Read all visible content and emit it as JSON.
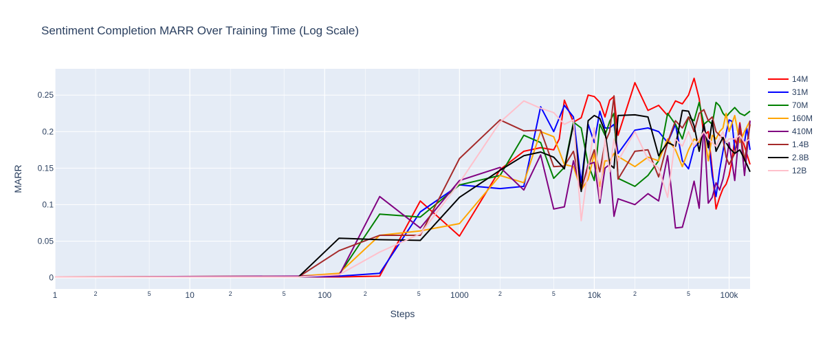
{
  "chart_data": {
    "type": "line",
    "title": "Sentiment Completion MARR Over Training Time (Log Scale)",
    "xlabel": "Steps",
    "ylabel": "MARR",
    "x_scale": "log",
    "xlim": [
      1,
      143000
    ],
    "ylim": [
      -0.0155,
      0.286
    ],
    "x_major_ticks": [
      1,
      10,
      100,
      1000,
      10000,
      100000
    ],
    "x_major_tick_labels": [
      "1",
      "10",
      "100",
      "1000",
      "10k",
      "100k"
    ],
    "x_minor_ticks": [
      2,
      5,
      20,
      50,
      200,
      500,
      2000,
      5000,
      20000,
      50000
    ],
    "x_minor_tick_labels": [
      "2",
      "5",
      "2",
      "5",
      "2",
      "5",
      "2",
      "5",
      "2",
      "5"
    ],
    "y_ticks": [
      0,
      0.05,
      0.1,
      0.15,
      0.2,
      0.25
    ],
    "y_tick_labels": [
      "0",
      "0.05",
      "0.1",
      "0.15",
      "0.2",
      "0.25"
    ],
    "grid": true,
    "legend_position": "right",
    "plot_background": "#e5ecf6",
    "series": [
      {
        "name": "14M",
        "color": "#ff0000",
        "x": [
          1,
          64,
          128,
          256,
          512,
          1000,
          2000,
          3000,
          4000,
          5000,
          5500,
          6000,
          7000,
          8000,
          9000,
          10000,
          11000,
          12000,
          13000,
          14000,
          15000,
          20000,
          25000,
          30000,
          35000,
          40000,
          45000,
          50000,
          55000,
          60000,
          65000,
          70000,
          75000,
          80000,
          85000,
          90000,
          95000,
          100000,
          105000,
          110000,
          115000,
          120000,
          125000,
          130000,
          135000,
          143000
        ],
        "y": [
          0.001,
          0.001,
          0.001,
          0.002,
          0.105,
          0.057,
          0.148,
          0.173,
          0.178,
          0.175,
          0.19,
          0.243,
          0.213,
          0.219,
          0.25,
          0.248,
          0.24,
          0.22,
          0.243,
          0.248,
          0.195,
          0.267,
          0.229,
          0.236,
          0.222,
          0.242,
          0.238,
          0.25,
          0.273,
          0.245,
          0.195,
          0.2,
          0.147,
          0.094,
          0.11,
          0.122,
          0.128,
          0.14,
          0.16,
          0.19,
          0.18,
          0.212,
          0.19,
          0.18,
          0.17,
          0.155
        ]
      },
      {
        "name": "31M",
        "color": "#0000ff",
        "x": [
          1,
          64,
          128,
          256,
          512,
          1000,
          2000,
          3000,
          4000,
          5000,
          6000,
          7000,
          8000,
          9000,
          10000,
          11000,
          12000,
          13000,
          14000,
          15000,
          20000,
          25000,
          30000,
          35000,
          40000,
          45000,
          50000,
          55000,
          60000,
          65000,
          70000,
          75000,
          80000,
          85000,
          90000,
          95000,
          100000,
          105000,
          110000,
          115000,
          120000,
          125000,
          130000,
          135000,
          143000
        ],
        "y": [
          0.001,
          0.001,
          0.002,
          0.006,
          0.09,
          0.127,
          0.122,
          0.125,
          0.234,
          0.2,
          0.236,
          0.22,
          0.13,
          0.21,
          0.185,
          0.228,
          0.205,
          0.205,
          0.21,
          0.17,
          0.202,
          0.205,
          0.2,
          0.185,
          0.21,
          0.16,
          0.149,
          0.178,
          0.185,
          0.2,
          0.19,
          0.14,
          0.111,
          0.147,
          0.173,
          0.198,
          0.216,
          0.214,
          0.175,
          0.18,
          0.2,
          0.19,
          0.185,
          0.205,
          0.175
        ]
      },
      {
        "name": "70M",
        "color": "#008000",
        "x": [
          1,
          64,
          128,
          256,
          512,
          1000,
          2000,
          3000,
          4000,
          5000,
          6000,
          7000,
          8000,
          9000,
          10000,
          11000,
          12000,
          13000,
          14000,
          15000,
          20000,
          25000,
          30000,
          35000,
          40000,
          45000,
          50000,
          55000,
          60000,
          65000,
          70000,
          75000,
          80000,
          85000,
          90000,
          95000,
          100000,
          110000,
          120000,
          130000,
          143000
        ],
        "y": [
          0.001,
          0.001,
          0.004,
          0.087,
          0.083,
          0.127,
          0.14,
          0.195,
          0.185,
          0.136,
          0.151,
          0.213,
          0.205,
          0.155,
          0.133,
          0.21,
          0.195,
          0.214,
          0.225,
          0.136,
          0.125,
          0.14,
          0.16,
          0.225,
          0.21,
          0.19,
          0.22,
          0.215,
          0.24,
          0.21,
          0.215,
          0.21,
          0.24,
          0.235,
          0.225,
          0.22,
          0.225,
          0.233,
          0.225,
          0.222,
          0.228
        ]
      },
      {
        "name": "160M",
        "color": "#ffa500",
        "x": [
          1,
          64,
          128,
          256,
          512,
          1000,
          2000,
          3000,
          4000,
          5000,
          6000,
          7000,
          8000,
          9000,
          10000,
          11000,
          12000,
          13000,
          14000,
          15000,
          20000,
          25000,
          30000,
          35000,
          40000,
          45000,
          50000,
          55000,
          60000,
          65000,
          70000,
          75000,
          80000,
          85000,
          90000,
          95000,
          100000,
          110000,
          120000,
          130000,
          143000
        ],
        "y": [
          0.001,
          0.002,
          0.006,
          0.058,
          0.064,
          0.074,
          0.14,
          0.13,
          0.2,
          0.193,
          0.155,
          0.152,
          0.12,
          0.135,
          0.17,
          0.125,
          0.16,
          0.16,
          0.17,
          0.166,
          0.152,
          0.165,
          0.16,
          0.19,
          0.175,
          0.152,
          0.175,
          0.19,
          0.185,
          0.2,
          0.16,
          0.195,
          0.19,
          0.2,
          0.205,
          0.225,
          0.2,
          0.222,
          0.185,
          0.2,
          0.215
        ]
      },
      {
        "name": "410M",
        "color": "#800080",
        "x": [
          1,
          64,
          128,
          256,
          512,
          1000,
          2000,
          3000,
          4000,
          5000,
          6000,
          7000,
          8000,
          9000,
          10000,
          11000,
          12000,
          13000,
          14000,
          15000,
          20000,
          25000,
          30000,
          35000,
          40000,
          45000,
          50000,
          55000,
          60000,
          65000,
          70000,
          75000,
          80000,
          85000,
          90000,
          95000,
          100000,
          110000,
          120000,
          130000,
          143000
        ],
        "y": [
          0.001,
          0.002,
          0.003,
          0.111,
          0.068,
          0.133,
          0.151,
          0.12,
          0.168,
          0.094,
          0.097,
          0.16,
          0.12,
          0.155,
          0.158,
          0.102,
          0.15,
          0.155,
          0.084,
          0.108,
          0.1,
          0.115,
          0.105,
          0.167,
          0.068,
          0.069,
          0.1,
          0.132,
          0.095,
          0.21,
          0.102,
          0.11,
          0.13,
          0.12,
          0.135,
          0.157,
          0.185,
          0.133,
          0.21,
          0.14,
          0.215
        ]
      },
      {
        "name": "1.4B",
        "color": "#a52a2a",
        "x": [
          1,
          64,
          128,
          256,
          512,
          1000,
          2000,
          3000,
          4000,
          5000,
          6000,
          7000,
          8000,
          9000,
          10000,
          11000,
          12000,
          13000,
          14000,
          15000,
          20000,
          25000,
          30000,
          35000,
          40000,
          45000,
          50000,
          55000,
          60000,
          65000,
          70000,
          75000,
          80000,
          85000,
          90000,
          95000,
          100000,
          110000,
          120000,
          130000,
          143000
        ],
        "y": [
          0.001,
          0.001,
          0.037,
          0.058,
          0.058,
          0.163,
          0.216,
          0.201,
          0.202,
          0.152,
          0.153,
          0.173,
          0.122,
          0.152,
          0.175,
          0.145,
          0.185,
          0.2,
          0.249,
          0.135,
          0.173,
          0.175,
          0.138,
          0.185,
          0.215,
          0.205,
          0.22,
          0.2,
          0.225,
          0.23,
          0.215,
          0.22,
          0.2,
          0.195,
          0.19,
          0.165,
          0.155,
          0.17,
          0.205,
          0.16,
          0.21
        ]
      },
      {
        "name": "2.8B",
        "color": "#000000",
        "x": [
          1,
          64,
          128,
          256,
          512,
          1000,
          2000,
          3000,
          4000,
          5000,
          6000,
          7000,
          8000,
          9000,
          10000,
          11000,
          12000,
          13000,
          14000,
          15000,
          20000,
          25000,
          30000,
          35000,
          40000,
          45000,
          50000,
          55000,
          60000,
          65000,
          70000,
          75000,
          80000,
          85000,
          90000,
          95000,
          100000,
          110000,
          120000,
          130000,
          143000
        ],
        "y": [
          0.001,
          0.001,
          0.054,
          0.052,
          0.051,
          0.11,
          0.147,
          0.167,
          0.172,
          0.165,
          0.149,
          0.21,
          0.118,
          0.215,
          0.222,
          0.218,
          0.2,
          0.155,
          0.15,
          0.222,
          0.223,
          0.22,
          0.167,
          0.185,
          0.18,
          0.229,
          0.228,
          0.208,
          0.173,
          0.21,
          0.178,
          0.215,
          0.173,
          0.183,
          0.192,
          0.185,
          0.178,
          0.17,
          0.175,
          0.162,
          0.145
        ]
      },
      {
        "name": "12B",
        "color": "#ffc0cb",
        "x": [
          1,
          64,
          128,
          256,
          512,
          1000,
          2000,
          3000,
          4000,
          5000,
          6000,
          7000,
          8000,
          9000,
          10000,
          11000,
          12000,
          13000,
          14000,
          15000,
          20000,
          25000,
          30000,
          35000,
          40000,
          45000,
          50000,
          55000,
          60000,
          65000,
          70000,
          75000,
          80000,
          85000,
          90000,
          95000,
          100000,
          110000,
          120000,
          130000,
          143000
        ],
        "y": [
          0.001,
          0.001,
          0.004,
          0.035,
          0.06,
          0.13,
          0.213,
          0.242,
          0.232,
          0.226,
          0.21,
          0.216,
          0.078,
          0.15,
          0.205,
          0.108,
          0.19,
          0.145,
          0.19,
          0.16,
          0.2,
          0.162,
          0.15,
          0.11,
          0.19,
          0.18,
          0.2,
          0.18,
          0.19,
          0.2,
          0.19,
          0.185,
          0.18,
          0.19,
          0.2,
          0.185,
          0.19,
          0.19,
          0.195,
          0.185,
          0.19
        ]
      }
    ]
  }
}
